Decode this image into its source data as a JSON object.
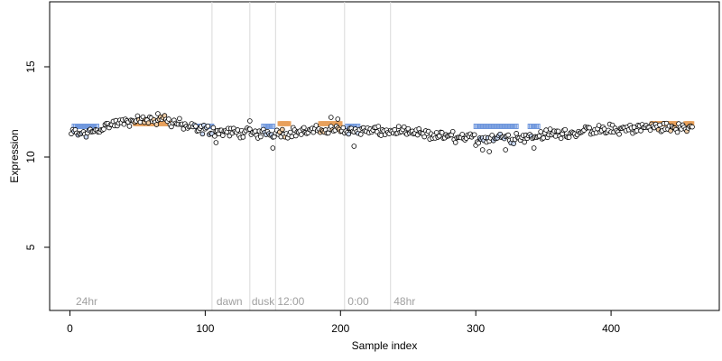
{
  "chart_data": {
    "type": "scatter",
    "xlabel": "Sample index",
    "ylabel": "Expression",
    "xlim": [
      -15,
      480
    ],
    "ylim": [
      1.5,
      18.6
    ],
    "xticks": [
      0,
      100,
      200,
      300,
      400
    ],
    "yticks": [
      5,
      10,
      15
    ],
    "grid": false,
    "legend": "none",
    "colors": {
      "point_fill": "#ffffff",
      "point_stroke": "#000000",
      "low_marker": "#6f97dd",
      "high_marker": "#e8a15c",
      "vline": "#d9d9d9",
      "annotation": "#a0a0a0"
    },
    "vlines": [
      105,
      133,
      152,
      203,
      237
    ],
    "annotations": [
      {
        "x": 3,
        "text": "24hr"
      },
      {
        "x": 107,
        "text": "dawn"
      },
      {
        "x": 133,
        "text": "dusk"
      },
      {
        "x": 152,
        "text": "12:00"
      },
      {
        "x": 204,
        "text": "0:00"
      },
      {
        "x": 238,
        "text": "48hr"
      }
    ],
    "series": [
      {
        "name": "",
        "segments": [
          {
            "from": 1,
            "to": 10,
            "y0": 11.3,
            "y1": 11.3
          },
          {
            "from": 10,
            "to": 30,
            "y0": 11.3,
            "y1": 11.8
          },
          {
            "from": 30,
            "to": 50,
            "y0": 11.8,
            "y1": 12.0
          },
          {
            "from": 50,
            "to": 70,
            "y0": 12.0,
            "y1": 12.1
          },
          {
            "from": 70,
            "to": 90,
            "y0": 12.1,
            "y1": 11.6
          },
          {
            "from": 90,
            "to": 110,
            "y0": 11.6,
            "y1": 11.4
          },
          {
            "from": 110,
            "to": 140,
            "y0": 11.4,
            "y1": 11.3
          },
          {
            "from": 140,
            "to": 170,
            "y0": 11.3,
            "y1": 11.4
          },
          {
            "from": 170,
            "to": 200,
            "y0": 11.4,
            "y1": 11.5
          },
          {
            "from": 200,
            "to": 240,
            "y0": 11.5,
            "y1": 11.4
          },
          {
            "from": 240,
            "to": 270,
            "y0": 11.4,
            "y1": 11.2
          },
          {
            "from": 270,
            "to": 300,
            "y0": 11.2,
            "y1": 11.0
          },
          {
            "from": 300,
            "to": 330,
            "y0": 11.0,
            "y1": 11.1
          },
          {
            "from": 330,
            "to": 360,
            "y0": 11.1,
            "y1": 11.3
          },
          {
            "from": 360,
            "to": 400,
            "y0": 11.3,
            "y1": 11.5
          },
          {
            "from": 400,
            "to": 440,
            "y0": 11.5,
            "y1": 11.7
          },
          {
            "from": 440,
            "to": 460,
            "y0": 11.7,
            "y1": 11.6
          }
        ],
        "spread": 0.22,
        "n_points": 460
      }
    ],
    "outliers": [
      {
        "x": 108,
        "y": 10.8
      },
      {
        "x": 150,
        "y": 10.5
      },
      {
        "x": 210,
        "y": 10.6
      },
      {
        "x": 305,
        "y": 10.4
      },
      {
        "x": 310,
        "y": 10.3
      },
      {
        "x": 322,
        "y": 10.4
      },
      {
        "x": 343,
        "y": 10.5
      },
      {
        "x": 65,
        "y": 12.4
      },
      {
        "x": 193,
        "y": 12.2
      },
      {
        "x": 198,
        "y": 12.1
      },
      {
        "x": 133,
        "y": 12.0
      }
    ],
    "low_marker_ranges": [
      [
        3,
        20
      ],
      [
        92,
        105
      ],
      [
        143,
        150
      ],
      [
        205,
        213
      ],
      [
        300,
        330
      ],
      [
        340,
        346
      ]
    ],
    "high_marker_ranges": [
      [
        48,
        75
      ],
      [
        155,
        162
      ],
      [
        185,
        200
      ],
      [
        430,
        448
      ],
      [
        455,
        460
      ]
    ],
    "marker_level_low": 11.7,
    "marker_level_high": 11.85
  }
}
